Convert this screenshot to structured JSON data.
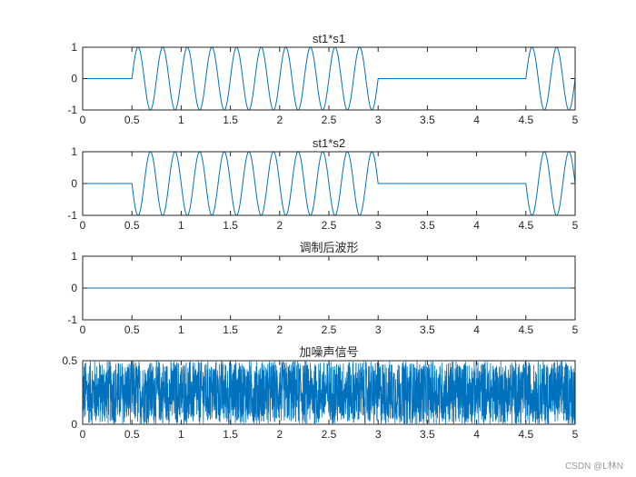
{
  "chart_data": [
    {
      "type": "line",
      "title": "st1*s1",
      "xlabel": "",
      "ylabel": "",
      "xlim": [
        0,
        5
      ],
      "ylim": [
        -1,
        1
      ],
      "xticks": [
        "0",
        "0.5",
        "1",
        "1.5",
        "2",
        "2.5",
        "3",
        "3.5",
        "4",
        "4.5",
        "5"
      ],
      "yticks": [
        "-1",
        "0",
        "1"
      ],
      "series": [
        {
          "name": "st1*s1",
          "color": "#0072BD",
          "description": "0 for t<0.5; sin(2*pi*4*(t-0.5)) for 0.5<=t<3; 0 for 3<=t<4.5; sin(2*pi*4*(t-4.5)) for t>=4.5",
          "segments": [
            {
              "x": [
                0,
                0.5
              ],
              "kind": "zero"
            },
            {
              "x": [
                0.5,
                3
              ],
              "kind": "sin",
              "freq": 4,
              "phase_start": 0.5,
              "sign": 1
            },
            {
              "x": [
                3,
                4.5
              ],
              "kind": "zero"
            },
            {
              "x": [
                4.5,
                5
              ],
              "kind": "sin",
              "freq": 4,
              "phase_start": 4.5,
              "sign": 1
            }
          ]
        }
      ],
      "grid": false
    },
    {
      "type": "line",
      "title": "st1*s2",
      "xlabel": "",
      "ylabel": "",
      "xlim": [
        0,
        5
      ],
      "ylim": [
        -1,
        1
      ],
      "xticks": [
        "0",
        "0.5",
        "1",
        "1.5",
        "2",
        "2.5",
        "3",
        "3.5",
        "4",
        "4.5",
        "5"
      ],
      "yticks": [
        "-1",
        "0",
        "1"
      ],
      "series": [
        {
          "name": "st1*s2",
          "color": "#0072BD",
          "description": "0 for t<0.5; -sin(2*pi*4*(t-0.5)) for 0.5<=t<3; 0 for 3<=t<4.5; -sin(2*pi*4*(t-4.5)) for t>=4.5",
          "segments": [
            {
              "x": [
                0,
                0.5
              ],
              "kind": "zero"
            },
            {
              "x": [
                0.5,
                3
              ],
              "kind": "sin",
              "freq": 4,
              "phase_start": 0.5,
              "sign": -1
            },
            {
              "x": [
                3,
                4.5
              ],
              "kind": "zero"
            },
            {
              "x": [
                4.5,
                5
              ],
              "kind": "sin",
              "freq": 4,
              "phase_start": 4.5,
              "sign": -1
            }
          ]
        }
      ],
      "grid": false
    },
    {
      "type": "line",
      "title": "调制后波形",
      "xlabel": "",
      "ylabel": "",
      "xlim": [
        0,
        5
      ],
      "ylim": [
        -1,
        1
      ],
      "xticks": [
        "0",
        "0.5",
        "1",
        "1.5",
        "2",
        "2.5",
        "3",
        "3.5",
        "4",
        "4.5",
        "5"
      ],
      "yticks": [
        "-1",
        "0",
        "1"
      ],
      "series": [
        {
          "name": "调制后波形",
          "color": "#0072BD",
          "x": [
            0,
            5
          ],
          "y": [
            0,
            0
          ]
        }
      ],
      "grid": false
    },
    {
      "type": "line",
      "title": "加噪声信号",
      "xlabel": "",
      "ylabel": "",
      "xlim": [
        0,
        5
      ],
      "ylim": [
        0,
        0.5
      ],
      "xticks": [
        "0",
        "0.5",
        "1",
        "1.5",
        "2",
        "2.5",
        "3",
        "3.5",
        "4",
        "4.5",
        "5"
      ],
      "yticks": [
        "0",
        "0.5"
      ],
      "series": [
        {
          "name": "加噪声信号",
          "color": "#0072BD",
          "description": "dense random noise uniformly filling roughly 0 to 0.5 across 0..5"
        }
      ],
      "grid": false
    }
  ],
  "watermark": "CSDN @L林N"
}
